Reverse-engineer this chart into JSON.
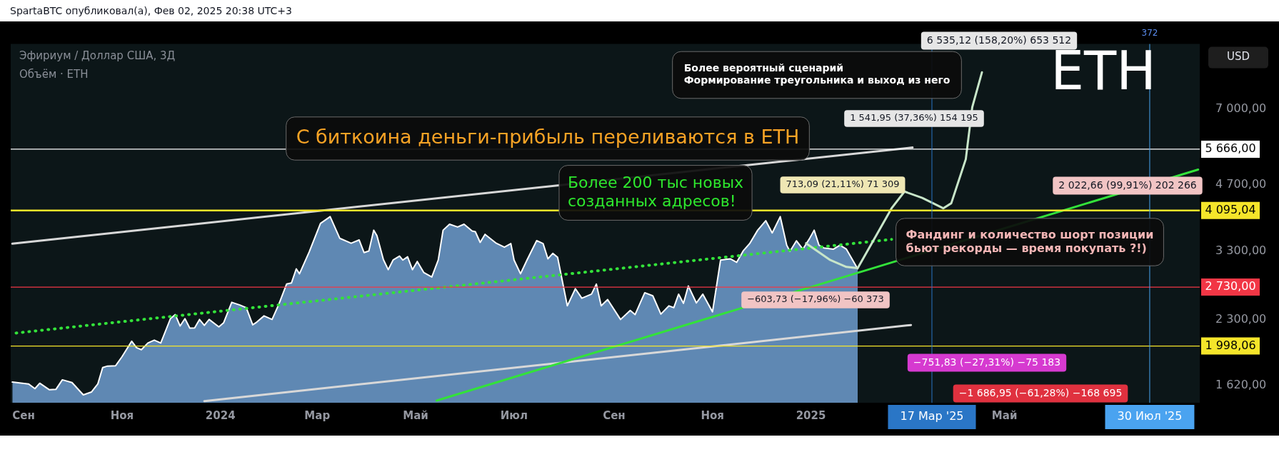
{
  "chart_data": {
    "type": "area",
    "title": "Эфириум / Доллар США, 3Д",
    "subtitle": "Объём · ETH",
    "ylabel": "USD",
    "xlim": [
      "2023-08-24",
      "2025-08-30"
    ],
    "xticks": [
      {
        "value": "2023-09-01",
        "label": "Сен"
      },
      {
        "value": "2023-11-01",
        "label": "Ноя"
      },
      {
        "value": "2024-01-01",
        "label": "2024"
      },
      {
        "value": "2024-03-01",
        "label": "Мар"
      },
      {
        "value": "2024-05-01",
        "label": "Май"
      },
      {
        "value": "2024-07-01",
        "label": "Июл"
      },
      {
        "value": "2024-09-01",
        "label": "Сен"
      },
      {
        "value": "2024-11-01",
        "label": "Ноя"
      },
      {
        "value": "2025-01-01",
        "label": "2025"
      },
      {
        "value": "2025-05-01",
        "label": "Май"
      }
    ],
    "ylim": [
      1480,
      9890
    ],
    "log": "y",
    "yticks": [
      {
        "value": 1620,
        "label": "1 620,00"
      },
      {
        "value": 2300,
        "label": "2 300,00"
      },
      {
        "value": 3300,
        "label": "3 300,00"
      },
      {
        "value": 4700,
        "label": "4 700,00"
      },
      {
        "value": 7000,
        "label": "7 000,00"
      }
    ],
    "grid": false,
    "legend": false,
    "marker": "none",
    "series": [
      {
        "color": "#6f9ccf",
        "x": [
          "2023-08-25",
          "2023-09-04",
          "2023-09-08",
          "2023-09-11",
          "2023-09-17",
          "2023-09-21",
          "2023-09-25",
          "2023-10-01",
          "2023-10-08",
          "2023-10-13",
          "2023-10-17",
          "2023-10-20",
          "2023-10-23",
          "2023-10-28",
          "2023-11-01",
          "2023-11-07",
          "2023-11-10",
          "2023-11-13",
          "2023-11-17",
          "2023-11-21",
          "2023-11-25",
          "2023-12-01",
          "2023-12-04",
          "2023-12-07",
          "2023-12-10",
          "2023-12-13",
          "2023-12-16",
          "2023-12-19",
          "2023-12-22",
          "2023-12-25",
          "2023-12-31",
          "2024-01-03",
          "2024-01-08",
          "2024-01-13",
          "2024-01-17",
          "2024-01-21",
          "2024-01-23",
          "2024-01-28",
          "2024-02-02",
          "2024-02-06",
          "2024-02-11",
          "2024-02-14",
          "2024-02-17",
          "2024-02-19",
          "2024-02-25",
          "2024-03-03",
          "2024-03-09",
          "2024-03-15",
          "2024-03-22",
          "2024-03-27",
          "2024-03-30",
          "2024-04-02",
          "2024-04-05",
          "2024-04-07",
          "2024-04-11",
          "2024-04-14",
          "2024-04-17",
          "2024-04-21",
          "2024-04-23",
          "2024-04-26",
          "2024-04-29",
          "2024-05-02",
          "2024-05-06",
          "2024-05-11",
          "2024-05-15",
          "2024-05-18",
          "2024-05-22",
          "2024-05-27",
          "2024-05-31",
          "2024-06-05",
          "2024-06-07",
          "2024-06-10",
          "2024-06-13",
          "2024-06-20",
          "2024-06-25",
          "2024-06-29",
          "2024-07-01",
          "2024-07-05",
          "2024-07-09",
          "2024-07-15",
          "2024-07-19",
          "2024-07-22",
          "2024-07-25",
          "2024-07-28",
          "2024-08-03",
          "2024-08-08",
          "2024-08-12",
          "2024-08-18",
          "2024-08-21",
          "2024-08-24",
          "2024-08-28",
          "2024-09-05",
          "2024-09-11",
          "2024-09-14",
          "2024-09-20",
          "2024-09-25",
          "2024-09-30",
          "2024-10-05",
          "2024-10-08",
          "2024-10-11",
          "2024-10-14",
          "2024-10-17",
          "2024-10-22",
          "2024-10-26",
          "2024-11-01",
          "2024-11-06",
          "2024-11-12",
          "2024-11-16",
          "2024-11-20",
          "2024-11-24",
          "2024-11-29",
          "2024-12-04",
          "2024-12-08",
          "2024-12-13",
          "2024-12-17",
          "2024-12-19",
          "2024-12-23",
          "2024-12-27",
          "2024-12-31",
          "2025-01-03",
          "2025-01-06",
          "2025-01-09",
          "2025-01-15",
          "2025-01-19",
          "2025-01-23",
          "2025-01-30"
        ],
        "values": [
          1651,
          1635,
          1595,
          1641,
          1585,
          1588,
          1671,
          1647,
          1543,
          1566,
          1635,
          1783,
          1797,
          1800,
          1889,
          2050,
          1981,
          1960,
          2030,
          2062,
          2030,
          2310,
          2360,
          2222,
          2310,
          2197,
          2200,
          2300,
          2229,
          2300,
          2212,
          2261,
          2519,
          2483,
          2448,
          2235,
          2261,
          2344,
          2300,
          2483,
          2774,
          2790,
          3007,
          2930,
          3288,
          3825,
          3964,
          3534,
          3443,
          3504,
          3278,
          3306,
          3690,
          3586,
          3158,
          2994,
          3150,
          3218,
          3150,
          3205,
          2994,
          3127,
          2950,
          2880,
          3150,
          3690,
          3809,
          3753,
          3809,
          3674,
          3660,
          3459,
          3610,
          3443,
          3373,
          3437,
          3150,
          2930,
          3150,
          3492,
          3437,
          3171,
          3264,
          3196,
          2472,
          2707,
          2574,
          2630,
          2774,
          2472,
          2556,
          2300,
          2413,
          2360,
          2650,
          2607,
          2366,
          2472,
          2448,
          2630,
          2505,
          2747,
          2510,
          2630,
          2395,
          3150,
          3171,
          3113,
          3306,
          3437,
          3690,
          3880,
          3637,
          3964,
          3408,
          3298,
          3489,
          3337,
          3523,
          3690,
          3408,
          3359,
          3337,
          3408,
          3337,
          3007
        ]
      },
      {
        "type": "line",
        "color": "#c8e6c9",
        "x": [
          "2024-12-29",
          "2025-01-13",
          "2025-01-23",
          "2025-01-30",
          "2025-02-20",
          "2025-02-28",
          "2025-03-11",
          "2025-03-24",
          "2025-03-29",
          "2025-04-07",
          "2025-04-11",
          "2025-04-17"
        ],
        "values": [
          3443,
          3150,
          3038,
          3019,
          4144,
          4528,
          4377,
          4144,
          4256,
          5375,
          7077,
          8512
        ]
      },
      {
        "type": "line",
        "color": "#33e23a",
        "x": [
          "2024-05-14",
          "2025-08-29"
        ],
        "values": [
          1497,
          5087
        ]
      },
      {
        "type": "line",
        "color": "#33e23a",
        "line_style": "dotted",
        "x": [
          "2023-08-27",
          "2025-02-20"
        ],
        "values": [
          2140,
          3515
        ]
      },
      {
        "type": "line",
        "color": "#d8d8d8",
        "x": [
          "2023-08-25",
          "2025-03-05"
        ],
        "values": [
          3436,
          5716
        ]
      },
      {
        "type": "line",
        "color": "#d8d8d8",
        "x": [
          "2023-12-22",
          "2025-03-04"
        ],
        "values": [
          1493,
          2233
        ]
      }
    ],
    "ref_lines": [
      {
        "axis": "y",
        "value": 5666,
        "label": "5 666,00",
        "color": "#ffffff"
      },
      {
        "axis": "y",
        "value": 4095.04,
        "label": "4 095,04",
        "color": "#f5e52a"
      },
      {
        "axis": "y",
        "value": 2730,
        "label": "2 730,00",
        "color": "#f23645"
      },
      {
        "axis": "y",
        "value": 1998.06,
        "label": "1 998,06",
        "color": "#f5e52a"
      },
      {
        "axis": "x",
        "value": "2025-03-17",
        "label": "17 Мар '25",
        "color": "#2a76c6"
      },
      {
        "axis": "x",
        "value": "2025-07-30",
        "label": "30 Июл '25",
        "color": "#4aa3f0"
      }
    ],
    "annotations": [
      "SpartaBTC опубликовал(а), Фев 02, 2025 20:38 UTC+3",
      "ETH",
      "С биткоина деньги-прибыль переливаются в ETH",
      "Более 200 тыс новых\nсозданных адресов!",
      "Более вероятный сценарий\nФормирование треугольника и выход из него",
      "Фандинг и количество шорт позиции\nбьют рекорды — время покупать ?!)",
      "6 535,12 (158,20%) 653 512",
      "1 541,95 (37,36%) 154 195",
      "713,09 (21,11%) 71 309",
      "2 022,66 (99,91%) 202 266",
      "−603,73 (−17,96%) −60 373",
      "−751,83 (−27,31%) −75 183",
      "−1 686,95 (−61,28%) −168 695",
      "372"
    ]
  }
}
